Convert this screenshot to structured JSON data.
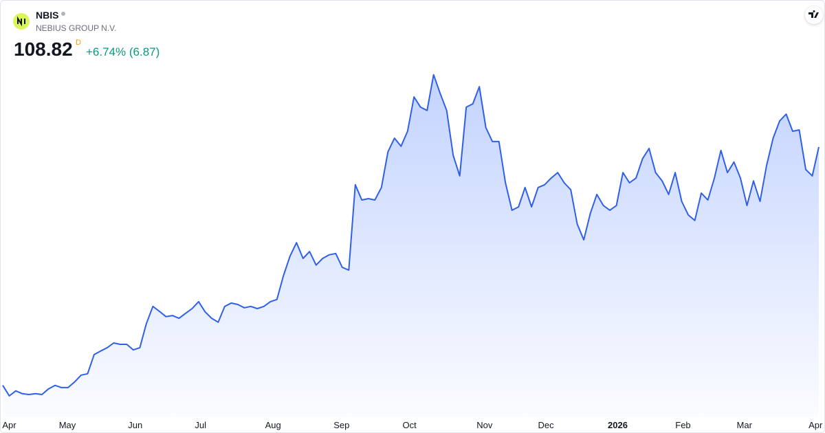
{
  "header": {
    "symbol": "NBIS",
    "company": "NEBIUS GROUP N.V.",
    "price": "108.82",
    "interval": "D",
    "change": "+6.74% (6.87)"
  },
  "chart_data": {
    "type": "area",
    "color": "#2f5fe8",
    "values": [
      22.8,
      19.0,
      20.8,
      19.8,
      19.5,
      19.8,
      19.5,
      21.5,
      22.8,
      22.0,
      22.0,
      24.0,
      26.5,
      27.0,
      33.9,
      35.2,
      36.4,
      38.1,
      37.6,
      37.6,
      35.6,
      36.4,
      45.1,
      51.3,
      49.5,
      47.6,
      48.0,
      47.0,
      48.8,
      50.5,
      53.0,
      49.3,
      47.0,
      45.6,
      51.3,
      52.5,
      52.0,
      50.8,
      51.3,
      50.5,
      51.3,
      53.0,
      53.8,
      62.4,
      69.4,
      74.3,
      68.6,
      71.1,
      66.2,
      68.6,
      69.9,
      70.4,
      65.4,
      64.4,
      95.2,
      89.7,
      90.2,
      89.7,
      94.2,
      107.1,
      112.0,
      109.1,
      114.5,
      126.9,
      123.2,
      122.0,
      134.9,
      128.2,
      122.0,
      105.8,
      98.4,
      123.2,
      124.4,
      130.6,
      115.8,
      110.8,
      110.8,
      95.9,
      86.0,
      87.2,
      94.2,
      87.2,
      94.2,
      95.2,
      97.6,
      99.6,
      95.9,
      93.4,
      81.0,
      75.3,
      84.8,
      91.7,
      87.7,
      86.0,
      87.7,
      99.6,
      95.9,
      97.6,
      104.6,
      108.3,
      99.6,
      96.6,
      91.7,
      99.6,
      89.2,
      84.3,
      82.3,
      92.2,
      89.7,
      97.6,
      107.6,
      99.6,
      103.4,
      97.6,
      87.7,
      96.6,
      89.2,
      102.1,
      112.0,
      118.2,
      120.7,
      114.5,
      115.0,
      100.7,
      98.4,
      108.82
    ],
    "xlim": [
      0,
      125
    ],
    "ylim": [
      12.8,
      139.3
    ],
    "xticks": [
      {
        "value": 1,
        "label": "Apr"
      },
      {
        "value": 9.9,
        "label": "May"
      },
      {
        "value": 20.3,
        "label": "Jun"
      },
      {
        "value": 30.3,
        "label": "Jul"
      },
      {
        "value": 41.4,
        "label": "Aug"
      },
      {
        "value": 51.9,
        "label": "Sep"
      },
      {
        "value": 62.3,
        "label": "Oct"
      },
      {
        "value": 73.8,
        "label": "Nov"
      },
      {
        "value": 83.2,
        "label": "Dec"
      },
      {
        "value": 94.2,
        "label": "2026",
        "bold": true
      },
      {
        "value": 104.2,
        "label": "Feb"
      },
      {
        "value": 113.6,
        "label": "Mar"
      },
      {
        "value": 124.5,
        "label": "Apr"
      }
    ]
  }
}
